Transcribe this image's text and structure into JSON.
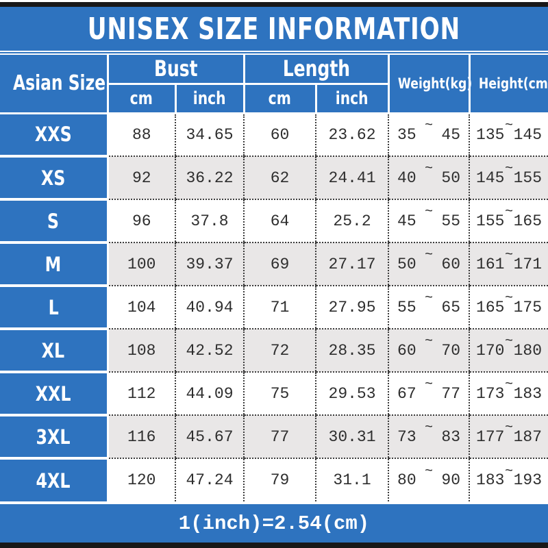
{
  "title": "UNISEX SIZE INFORMATION",
  "footer_note": "1(inch)=2.54(cm)",
  "tilde": "~",
  "colors": {
    "blue": "#2e73bf",
    "row_alt": "#e9e7e7",
    "row_white": "#ffffff",
    "bar_black": "#181818",
    "text": "#2e2e2e",
    "dot": "#3a3a3a"
  },
  "header": {
    "size_col": "Asian Size",
    "bust": "Bust",
    "length": "Length",
    "weight": "Weight(kg)",
    "height": "Height(cm)",
    "units": [
      "cm",
      "inch",
      "cm",
      "inch"
    ]
  },
  "chart_data": {
    "type": "table",
    "title": "UNISEX SIZE INFORMATION",
    "columns": [
      "Asian Size",
      "Bust cm",
      "Bust inch",
      "Length cm",
      "Length inch",
      "Weight(kg)",
      "Height(cm)"
    ],
    "rows": [
      {
        "size": "XXS",
        "bust_cm": "88",
        "bust_inch": "34.65",
        "length_cm": "60",
        "length_inch": "23.62",
        "weight_min": "35",
        "weight_max": "45",
        "height_min": "135",
        "height_max": "145"
      },
      {
        "size": "XS",
        "bust_cm": "92",
        "bust_inch": "36.22",
        "length_cm": "62",
        "length_inch": "24.41",
        "weight_min": "40",
        "weight_max": "50",
        "height_min": "145",
        "height_max": "155"
      },
      {
        "size": "S",
        "bust_cm": "96",
        "bust_inch": "37.8",
        "length_cm": "64",
        "length_inch": "25.2",
        "weight_min": "45",
        "weight_max": "55",
        "height_min": "155",
        "height_max": "165"
      },
      {
        "size": "M",
        "bust_cm": "100",
        "bust_inch": "39.37",
        "length_cm": "69",
        "length_inch": "27.17",
        "weight_min": "50",
        "weight_max": "60",
        "height_min": "161",
        "height_max": "171"
      },
      {
        "size": "L",
        "bust_cm": "104",
        "bust_inch": "40.94",
        "length_cm": "71",
        "length_inch": "27.95",
        "weight_min": "55",
        "weight_max": "65",
        "height_min": "165",
        "height_max": "175"
      },
      {
        "size": "XL",
        "bust_cm": "108",
        "bust_inch": "42.52",
        "length_cm": "72",
        "length_inch": "28.35",
        "weight_min": "60",
        "weight_max": "70",
        "height_min": "170",
        "height_max": "180"
      },
      {
        "size": "XXL",
        "bust_cm": "112",
        "bust_inch": "44.09",
        "length_cm": "75",
        "length_inch": "29.53",
        "weight_min": "67",
        "weight_max": "77",
        "height_min": "173",
        "height_max": "183"
      },
      {
        "size": "3XL",
        "bust_cm": "116",
        "bust_inch": "45.67",
        "length_cm": "77",
        "length_inch": "30.31",
        "weight_min": "73",
        "weight_max": "83",
        "height_min": "177",
        "height_max": "187"
      },
      {
        "size": "4XL",
        "bust_cm": "120",
        "bust_inch": "47.24",
        "length_cm": "79",
        "length_inch": "31.1",
        "weight_min": "80",
        "weight_max": "90",
        "height_min": "183",
        "height_max": "193"
      }
    ],
    "note": "1(inch)=2.54(cm)"
  }
}
